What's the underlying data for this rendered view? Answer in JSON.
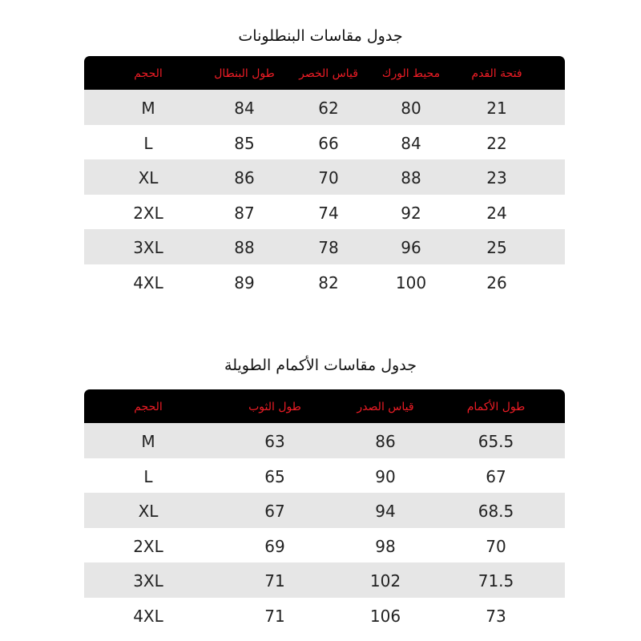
{
  "pants": {
    "title": "جدول مقاسات البنطلونات",
    "headers": [
      "الحجم",
      "طول البنطال",
      "قياس الخصر",
      "محيط الورك",
      "فتحة القدم"
    ],
    "rows": [
      [
        "M",
        "84",
        "62",
        "80",
        "21"
      ],
      [
        "L",
        "85",
        "66",
        "84",
        "22"
      ],
      [
        "XL",
        "86",
        "70",
        "88",
        "23"
      ],
      [
        "2XL",
        "87",
        "74",
        "92",
        "24"
      ],
      [
        "3XL",
        "88",
        "78",
        "96",
        "25"
      ],
      [
        "4XL",
        "89",
        "82",
        "100",
        "26"
      ]
    ]
  },
  "sleeves": {
    "title": "جدول مقاسات الأكمام الطويلة",
    "headers": [
      "الحجم",
      "طول الثوب",
      "قياس الصدر",
      "طول الأكمام"
    ],
    "rows": [
      [
        "M",
        "63",
        "86",
        "65.5"
      ],
      [
        "L",
        "65",
        "90",
        "67"
      ],
      [
        "XL",
        "67",
        "94",
        "68.5"
      ],
      [
        "2XL",
        "69",
        "98",
        "70"
      ],
      [
        "3XL",
        "71",
        "102",
        "71.5"
      ],
      [
        "4XL",
        "71",
        "106",
        "73"
      ]
    ]
  },
  "colors": {
    "header_bg": "#000000",
    "header_text": "#ee1c25",
    "stripe": "#e6e6e6"
  }
}
